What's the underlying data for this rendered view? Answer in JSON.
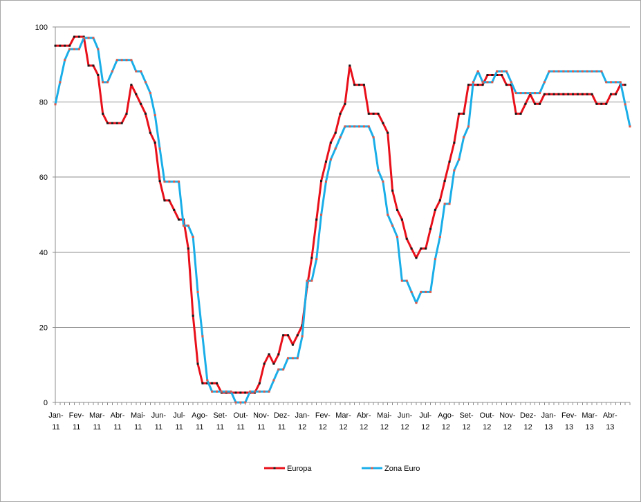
{
  "chart_data": {
    "type": "line",
    "title": "",
    "xlabel": "",
    "ylabel": "",
    "ylim": [
      0,
      100
    ],
    "yticks": [
      0,
      20,
      40,
      60,
      80,
      100
    ],
    "grid": true,
    "legend_position": "bottom",
    "x_labels": [
      {
        "top": "Jan-",
        "bottom": "11"
      },
      {
        "top": "Fev-",
        "bottom": "11"
      },
      {
        "top": "Mar-",
        "bottom": "11"
      },
      {
        "top": "Abr-",
        "bottom": "11"
      },
      {
        "top": "Mai-",
        "bottom": "11"
      },
      {
        "top": "Jun-",
        "bottom": "11"
      },
      {
        "top": "Jul-",
        "bottom": "11"
      },
      {
        "top": "Ago-",
        "bottom": "11"
      },
      {
        "top": "Set-",
        "bottom": "11"
      },
      {
        "top": "Out-",
        "bottom": "11"
      },
      {
        "top": "Nov-",
        "bottom": "11"
      },
      {
        "top": "Dez-",
        "bottom": "11"
      },
      {
        "top": "Jan-",
        "bottom": "12"
      },
      {
        "top": "Fev-",
        "bottom": "12"
      },
      {
        "top": "Mar-",
        "bottom": "12"
      },
      {
        "top": "Abr-",
        "bottom": "12"
      },
      {
        "top": "Mai-",
        "bottom": "12"
      },
      {
        "top": "Jun-",
        "bottom": "12"
      },
      {
        "top": "Jul-",
        "bottom": "12"
      },
      {
        "top": "Ago-",
        "bottom": "12"
      },
      {
        "top": "Set-",
        "bottom": "12"
      },
      {
        "top": "Out-",
        "bottom": "12"
      },
      {
        "top": "Nov-",
        "bottom": "12"
      },
      {
        "top": "Dez-",
        "bottom": "12"
      },
      {
        "top": "Jan-",
        "bottom": "13"
      },
      {
        "top": "Fev-",
        "bottom": "13"
      },
      {
        "top": "Mar-",
        "bottom": "13"
      },
      {
        "top": "Abr-",
        "bottom": "13"
      }
    ],
    "series": [
      {
        "name": "Europa",
        "color": "#e8101a",
        "marker_color": "#1a1a1a",
        "values": [
          95,
          95,
          95,
          95,
          97.4,
          97.4,
          97.4,
          89.7,
          89.7,
          87.2,
          76.9,
          74.4,
          74.4,
          74.4,
          74.4,
          76.9,
          84.6,
          82.1,
          79.5,
          76.9,
          71.8,
          69.2,
          59,
          53.8,
          53.8,
          51.3,
          48.7,
          48.7,
          41,
          23.1,
          10.3,
          5.1,
          5.1,
          5.1,
          5.1,
          2.6,
          2.6,
          2.6,
          2.6,
          2.6,
          2.6,
          2.6,
          2.6,
          5.1,
          10.3,
          12.8,
          10.3,
          12.8,
          17.9,
          17.9,
          15.4,
          17.9,
          20.5,
          30.8,
          38.5,
          48.7,
          59,
          64.1,
          69.2,
          71.8,
          76.9,
          79.5,
          89.7,
          84.6,
          84.6,
          84.6,
          76.9,
          76.9,
          76.9,
          74.4,
          71.8,
          56.4,
          51.3,
          48.7,
          43.6,
          41,
          38.5,
          41,
          41,
          46.2,
          51.3,
          53.8,
          59,
          64.1,
          69.2,
          76.9,
          76.9,
          84.6,
          84.6,
          84.6,
          84.6,
          87.2,
          87.2,
          87.2,
          87.2,
          84.6,
          84.6,
          76.9,
          76.9,
          79.5,
          82.1,
          79.5,
          79.5,
          82.1,
          82.1,
          82.1,
          82.1,
          82.1,
          82.1,
          82.1,
          82.1,
          82.1,
          82.1,
          82.1,
          79.5,
          79.5,
          79.5,
          82.1,
          82.1,
          84.6,
          84.6
        ]
      },
      {
        "name": "Zona Euro",
        "color": "#1aaee8",
        "marker_color": "#e05a4a",
        "values": [
          79.4,
          85.3,
          91.2,
          94.1,
          94.1,
          94.1,
          97.1,
          97.1,
          97.1,
          94.1,
          85.3,
          85.3,
          88.2,
          91.2,
          91.2,
          91.2,
          91.2,
          88.2,
          88.2,
          85.3,
          82.4,
          76.5,
          67.6,
          58.8,
          58.8,
          58.8,
          58.8,
          47.1,
          47.1,
          44.1,
          29.4,
          17.6,
          5.9,
          2.9,
          2.9,
          2.9,
          2.9,
          2.9,
          0,
          0,
          0,
          2.9,
          2.9,
          2.9,
          2.9,
          2.9,
          5.9,
          8.8,
          8.8,
          11.8,
          11.8,
          11.8,
          17.6,
          32.4,
          32.4,
          38.2,
          50,
          58.8,
          64.7,
          67.6,
          70.6,
          73.5,
          73.5,
          73.5,
          73.5,
          73.5,
          73.5,
          70.6,
          61.8,
          58.8,
          50,
          47.1,
          44.1,
          32.4,
          32.4,
          29.4,
          26.5,
          29.4,
          29.4,
          29.4,
          38.2,
          44.1,
          52.9,
          52.9,
          61.8,
          64.7,
          70.6,
          73.5,
          85.3,
          88.2,
          85.3,
          85.3,
          85.3,
          88.2,
          88.2,
          88.2,
          85.3,
          82.4,
          82.4,
          82.4,
          82.4,
          82.4,
          82.4,
          85.3,
          88.2,
          88.2,
          88.2,
          88.2,
          88.2,
          88.2,
          88.2,
          88.2,
          88.2,
          88.2,
          88.2,
          88.2,
          85.3,
          85.3,
          85.3,
          85.3,
          79.4,
          73.5
        ]
      }
    ]
  }
}
